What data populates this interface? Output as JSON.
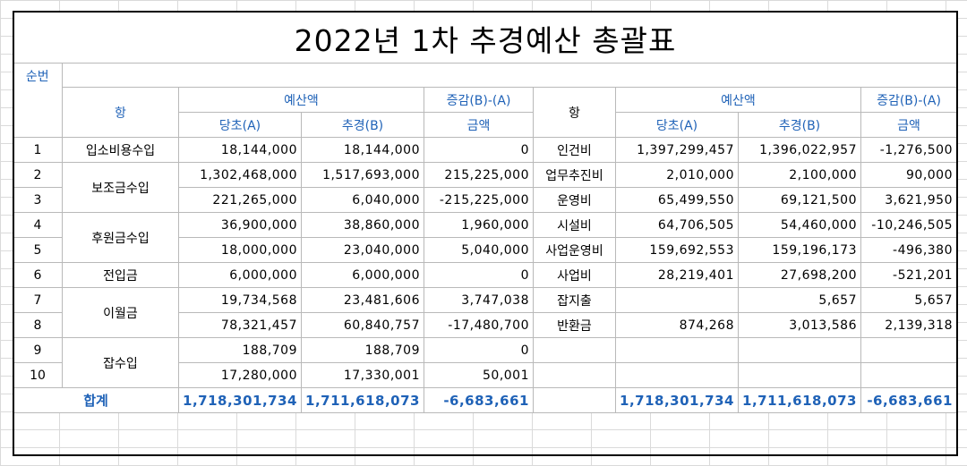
{
  "title": "2022년 1차 추경예산 총괄표",
  "headers": {
    "seq": "순번",
    "item": "항",
    "budget": "예산액",
    "diff": "증감(B)-(A)",
    "orig": "당초(A)",
    "rev": "추경(B)",
    "amount": "금액"
  },
  "rows": [
    {
      "no": "1",
      "inc": "입소비용수입",
      "ia": "18,144,000",
      "ib": "18,144,000",
      "id": "0",
      "exp": "인건비",
      "ea": "1,397,299,457",
      "eb": "1,396,022,957",
      "ed": "-1,276,500"
    },
    {
      "no": "2",
      "inc": "보조금수입",
      "ia": "1,302,468,000",
      "ib": "1,517,693,000",
      "id": "215,225,000",
      "exp": "업무추진비",
      "ea": "2,010,000",
      "eb": "2,100,000",
      "ed": "90,000"
    },
    {
      "no": "3",
      "inc": "",
      "ia": "221,265,000",
      "ib": "6,040,000",
      "id": "-215,225,000",
      "exp": "운영비",
      "ea": "65,499,550",
      "eb": "69,121,500",
      "ed": "3,621,950"
    },
    {
      "no": "4",
      "inc": "후원금수입",
      "ia": "36,900,000",
      "ib": "38,860,000",
      "id": "1,960,000",
      "exp": "시설비",
      "ea": "64,706,505",
      "eb": "54,460,000",
      "ed": "-10,246,505"
    },
    {
      "no": "5",
      "inc": "",
      "ia": "18,000,000",
      "ib": "23,040,000",
      "id": "5,040,000",
      "exp": "사업운영비",
      "ea": "159,692,553",
      "eb": "159,196,173",
      "ed": "-496,380"
    },
    {
      "no": "6",
      "inc": "전입금",
      "ia": "6,000,000",
      "ib": "6,000,000",
      "id": "0",
      "exp": "사업비",
      "ea": "28,219,401",
      "eb": "27,698,200",
      "ed": "-521,201"
    },
    {
      "no": "7",
      "inc": "이월금",
      "ia": "19,734,568",
      "ib": "23,481,606",
      "id": "3,747,038",
      "exp": "잡지출",
      "ea": "",
      "eb": "5,657",
      "ed": "5,657"
    },
    {
      "no": "8",
      "inc": "",
      "ia": "78,321,457",
      "ib": "60,840,757",
      "id": "-17,480,700",
      "exp": "반환금",
      "ea": "874,268",
      "eb": "3,013,586",
      "ed": "2,139,318"
    },
    {
      "no": "9",
      "inc": "잡수입",
      "ia": "188,709",
      "ib": "188,709",
      "id": "0",
      "exp": "",
      "ea": "",
      "eb": "",
      "ed": ""
    },
    {
      "no": "10",
      "inc": "",
      "ia": "17,280,000",
      "ib": "17,330,001",
      "id": "50,001",
      "exp": "",
      "ea": "",
      "eb": "",
      "ed": ""
    }
  ],
  "total": {
    "label": "합계",
    "ia": "1,718,301,734",
    "ib": "1,711,618,073",
    "id": "-6,683,661",
    "ea": "1,718,301,734",
    "eb": "1,711,618,073",
    "ed": "-6,683,661"
  },
  "colors": {
    "header_text": "#1f62b7",
    "grid": "#dadada",
    "border": "#000000"
  }
}
